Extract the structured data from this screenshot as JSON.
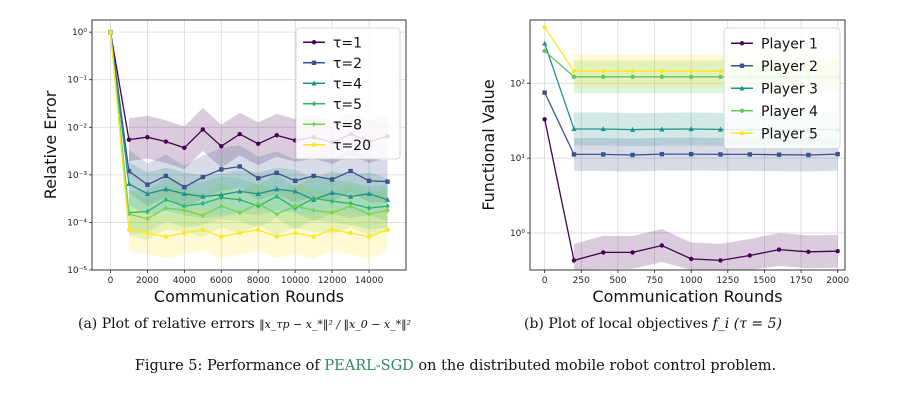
{
  "colors": {
    "c1": "#440154",
    "c2": "#3b528b",
    "c3": "#21918c",
    "c4": "#2cb46e",
    "c5": "#7ad151",
    "c6": "#fde725",
    "accent": "#2e8b57"
  },
  "chart_data": [
    {
      "type": "line",
      "xlabel": "Communication Rounds",
      "ylabel": "Relative Error",
      "yscale": "log",
      "xlim": [
        -1000,
        16000
      ],
      "ylim": [
        1e-05,
        1.8
      ],
      "xticks": [
        0,
        2000,
        4000,
        6000,
        8000,
        10000,
        12000,
        14000
      ],
      "yticks": [
        1,
        0.1,
        0.01,
        0.001,
        0.0001,
        1e-05
      ],
      "ytick_labels": [
        "10⁰",
        "10⁻¹",
        "10⁻²",
        "10⁻³",
        "10⁻⁴",
        "10⁻⁵"
      ],
      "grid": true,
      "legend_loc": "upper right",
      "x": [
        0,
        1000,
        2000,
        3000,
        4000,
        5000,
        6000,
        7000,
        8000,
        9000,
        10000,
        11000,
        12000,
        13000,
        14000,
        15000
      ],
      "series": [
        {
          "name": "τ=1",
          "color": "#440154",
          "marker": "circle",
          "values": [
            1,
            0.0055,
            0.0062,
            0.005,
            0.0037,
            0.009,
            0.004,
            0.0072,
            0.0045,
            0.0068,
            0.0053,
            0.0062,
            0.0048,
            0.0072,
            0.005,
            0.0065
          ]
        },
        {
          "name": "τ=2",
          "color": "#3b528b",
          "marker": "square",
          "values": [
            1,
            0.0012,
            0.00062,
            0.00095,
            0.00055,
            0.0009,
            0.0013,
            0.0015,
            0.00085,
            0.0011,
            0.00075,
            0.00095,
            0.0008,
            0.0012,
            0.00075,
            0.00072
          ]
        },
        {
          "name": "τ=4",
          "color": "#21918c",
          "marker": "triangle",
          "values": [
            1,
            0.00065,
            0.0004,
            0.0005,
            0.0004,
            0.00035,
            0.00038,
            0.00045,
            0.0004,
            0.0005,
            0.00045,
            0.0003,
            0.00042,
            0.00035,
            0.0004,
            0.0003
          ]
        },
        {
          "name": "τ=5",
          "color": "#2cb46e",
          "marker": "diamond",
          "values": [
            1,
            0.00016,
            0.00017,
            0.0003,
            0.00022,
            0.00025,
            0.00033,
            0.0003,
            0.00022,
            0.00035,
            0.0002,
            0.00032,
            0.00028,
            0.00025,
            0.0002,
            0.00022
          ]
        },
        {
          "name": "τ=8",
          "color": "#7ad151",
          "marker": "diamond",
          "values": [
            1,
            0.00015,
            0.00012,
            0.0002,
            0.00018,
            0.00014,
            0.00022,
            0.00016,
            0.00025,
            0.00015,
            0.00022,
            0.00018,
            0.00016,
            0.00022,
            0.00015,
            0.00018
          ]
        },
        {
          "name": "τ=20",
          "color": "#fde725",
          "marker": "circle",
          "values": [
            1,
            7e-05,
            6e-05,
            5e-05,
            6e-05,
            7e-05,
            5e-05,
            6e-05,
            7e-05,
            5e-05,
            6e-05,
            5e-05,
            7e-05,
            6e-05,
            5e-05,
            7e-05
          ]
        }
      ]
    },
    {
      "type": "line",
      "xlabel": "Communication Rounds",
      "ylabel": "Functional Value",
      "yscale": "log",
      "xlim": [
        -100,
        2050
      ],
      "ylim": [
        0.32,
        700
      ],
      "xticks": [
        0,
        250,
        500,
        750,
        1000,
        1250,
        1500,
        1750,
        2000
      ],
      "yticks": [
        100,
        10,
        1
      ],
      "ytick_labels": [
        "10²",
        "10¹",
        "10⁰"
      ],
      "grid": true,
      "legend_loc": "upper right",
      "x": [
        0,
        200,
        400,
        600,
        800,
        1000,
        1200,
        1400,
        1600,
        1800,
        2000
      ],
      "series": [
        {
          "name": "Player 1",
          "color": "#440154",
          "marker": "circle",
          "values": [
            33,
            0.43,
            0.55,
            0.55,
            0.68,
            0.45,
            0.43,
            0.5,
            0.6,
            0.56,
            0.57
          ]
        },
        {
          "name": "Player 2",
          "color": "#3b528b",
          "marker": "square",
          "values": [
            75,
            11.2,
            11.2,
            11,
            11.3,
            11.3,
            11.2,
            11.2,
            11.1,
            11,
            11.3
          ]
        },
        {
          "name": "Player 3",
          "color": "#21918c",
          "marker": "triangle",
          "values": [
            340,
            24.5,
            24.5,
            24,
            24.3,
            24.5,
            24.2,
            24,
            24,
            24.2,
            24
          ]
        },
        {
          "name": "Player 4",
          "color": "#5ec962",
          "marker": "circle",
          "values": [
            270,
            122,
            122,
            122,
            122,
            122,
            122,
            122,
            122,
            122,
            122
          ]
        },
        {
          "name": "Player 5",
          "color": "#fde725",
          "marker": "circle",
          "values": [
            560,
            145,
            145,
            145,
            145,
            145,
            145,
            145,
            145,
            145,
            145
          ]
        }
      ]
    }
  ],
  "captions": {
    "a_label": "(a) Plot of relative errors",
    "a_expr": "‖x_τp − x_*‖² / ‖x_0 − x_*‖²",
    "b_label": "(b) Plot of local objectives",
    "b_expr": "f_i (τ = 5)",
    "fig_prefix": "Figure 5: Performance of",
    "fig_method": "PEARL-SGD",
    "fig_suffix": "on the distributed mobile robot control problem."
  }
}
